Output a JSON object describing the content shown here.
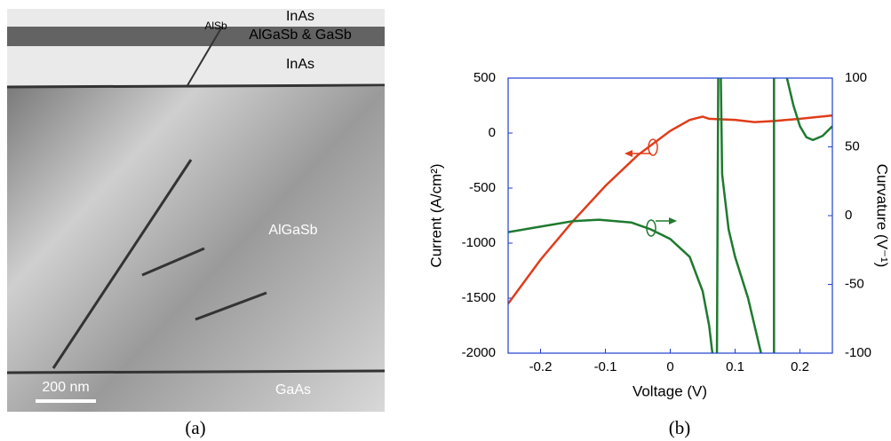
{
  "image": {
    "labels": [
      "InAs",
      "AlSb",
      "AlGaSb & GaSb",
      "InAs",
      "AlGaSb",
      "GaAs"
    ],
    "scale_bar": "200 nm",
    "caption": "(a)"
  },
  "chart_data": {
    "type": "line",
    "caption": "(b)",
    "x_label": "Voltage (V)",
    "y_label": "Current (A/cm²)",
    "y2_label": "Curvature (V⁻¹)",
    "xlim": [
      -0.25,
      0.25
    ],
    "xticks": [
      -0.2,
      -0.1,
      0,
      0.1,
      0.2
    ],
    "ylim": [
      -2000,
      500
    ],
    "yticks": [
      -2000,
      -1500,
      -1000,
      -500,
      0,
      500
    ],
    "y2lim": [
      -100,
      100
    ],
    "y2ticks": [
      -100,
      -50,
      0,
      50,
      100
    ],
    "axis_color": "#1f3fd0",
    "series": [
      {
        "color": "#e03c1a",
        "axis": "y",
        "x": [
          -0.25,
          -0.2,
          -0.15,
          -0.1,
          -0.05,
          0,
          0.03,
          0.05,
          0.06,
          0.1,
          0.13,
          0.16,
          0.2,
          0.25
        ],
        "values": [
          -1550,
          -1150,
          -800,
          -480,
          -200,
          20,
          120,
          150,
          130,
          120,
          100,
          110,
          130,
          160
        ]
      },
      {
        "color": "#1e7a2e",
        "axis": "y2",
        "x": [
          -0.25,
          -0.2,
          -0.15,
          -0.11,
          -0.06,
          -0.03,
          0,
          0.03,
          0.05,
          0.06,
          0.065,
          0.07,
          0.072,
          0.074,
          0.076,
          0.078,
          0.08,
          0.09,
          0.1,
          0.12,
          0.13,
          0.14,
          0.15,
          0.16,
          0.16,
          0.17,
          0.18,
          0.19,
          0.2,
          0.21,
          0.22,
          0.235,
          0.25
        ],
        "values": [
          -12,
          -8,
          -4,
          -3,
          -5,
          -10,
          -17,
          -30,
          -55,
          -80,
          -100,
          null,
          -100,
          100,
          null,
          100,
          30,
          -10,
          -30,
          -60,
          -80,
          -100,
          null,
          -100,
          100,
          null,
          100,
          80,
          65,
          57,
          55,
          58,
          65
        ]
      }
    ]
  }
}
